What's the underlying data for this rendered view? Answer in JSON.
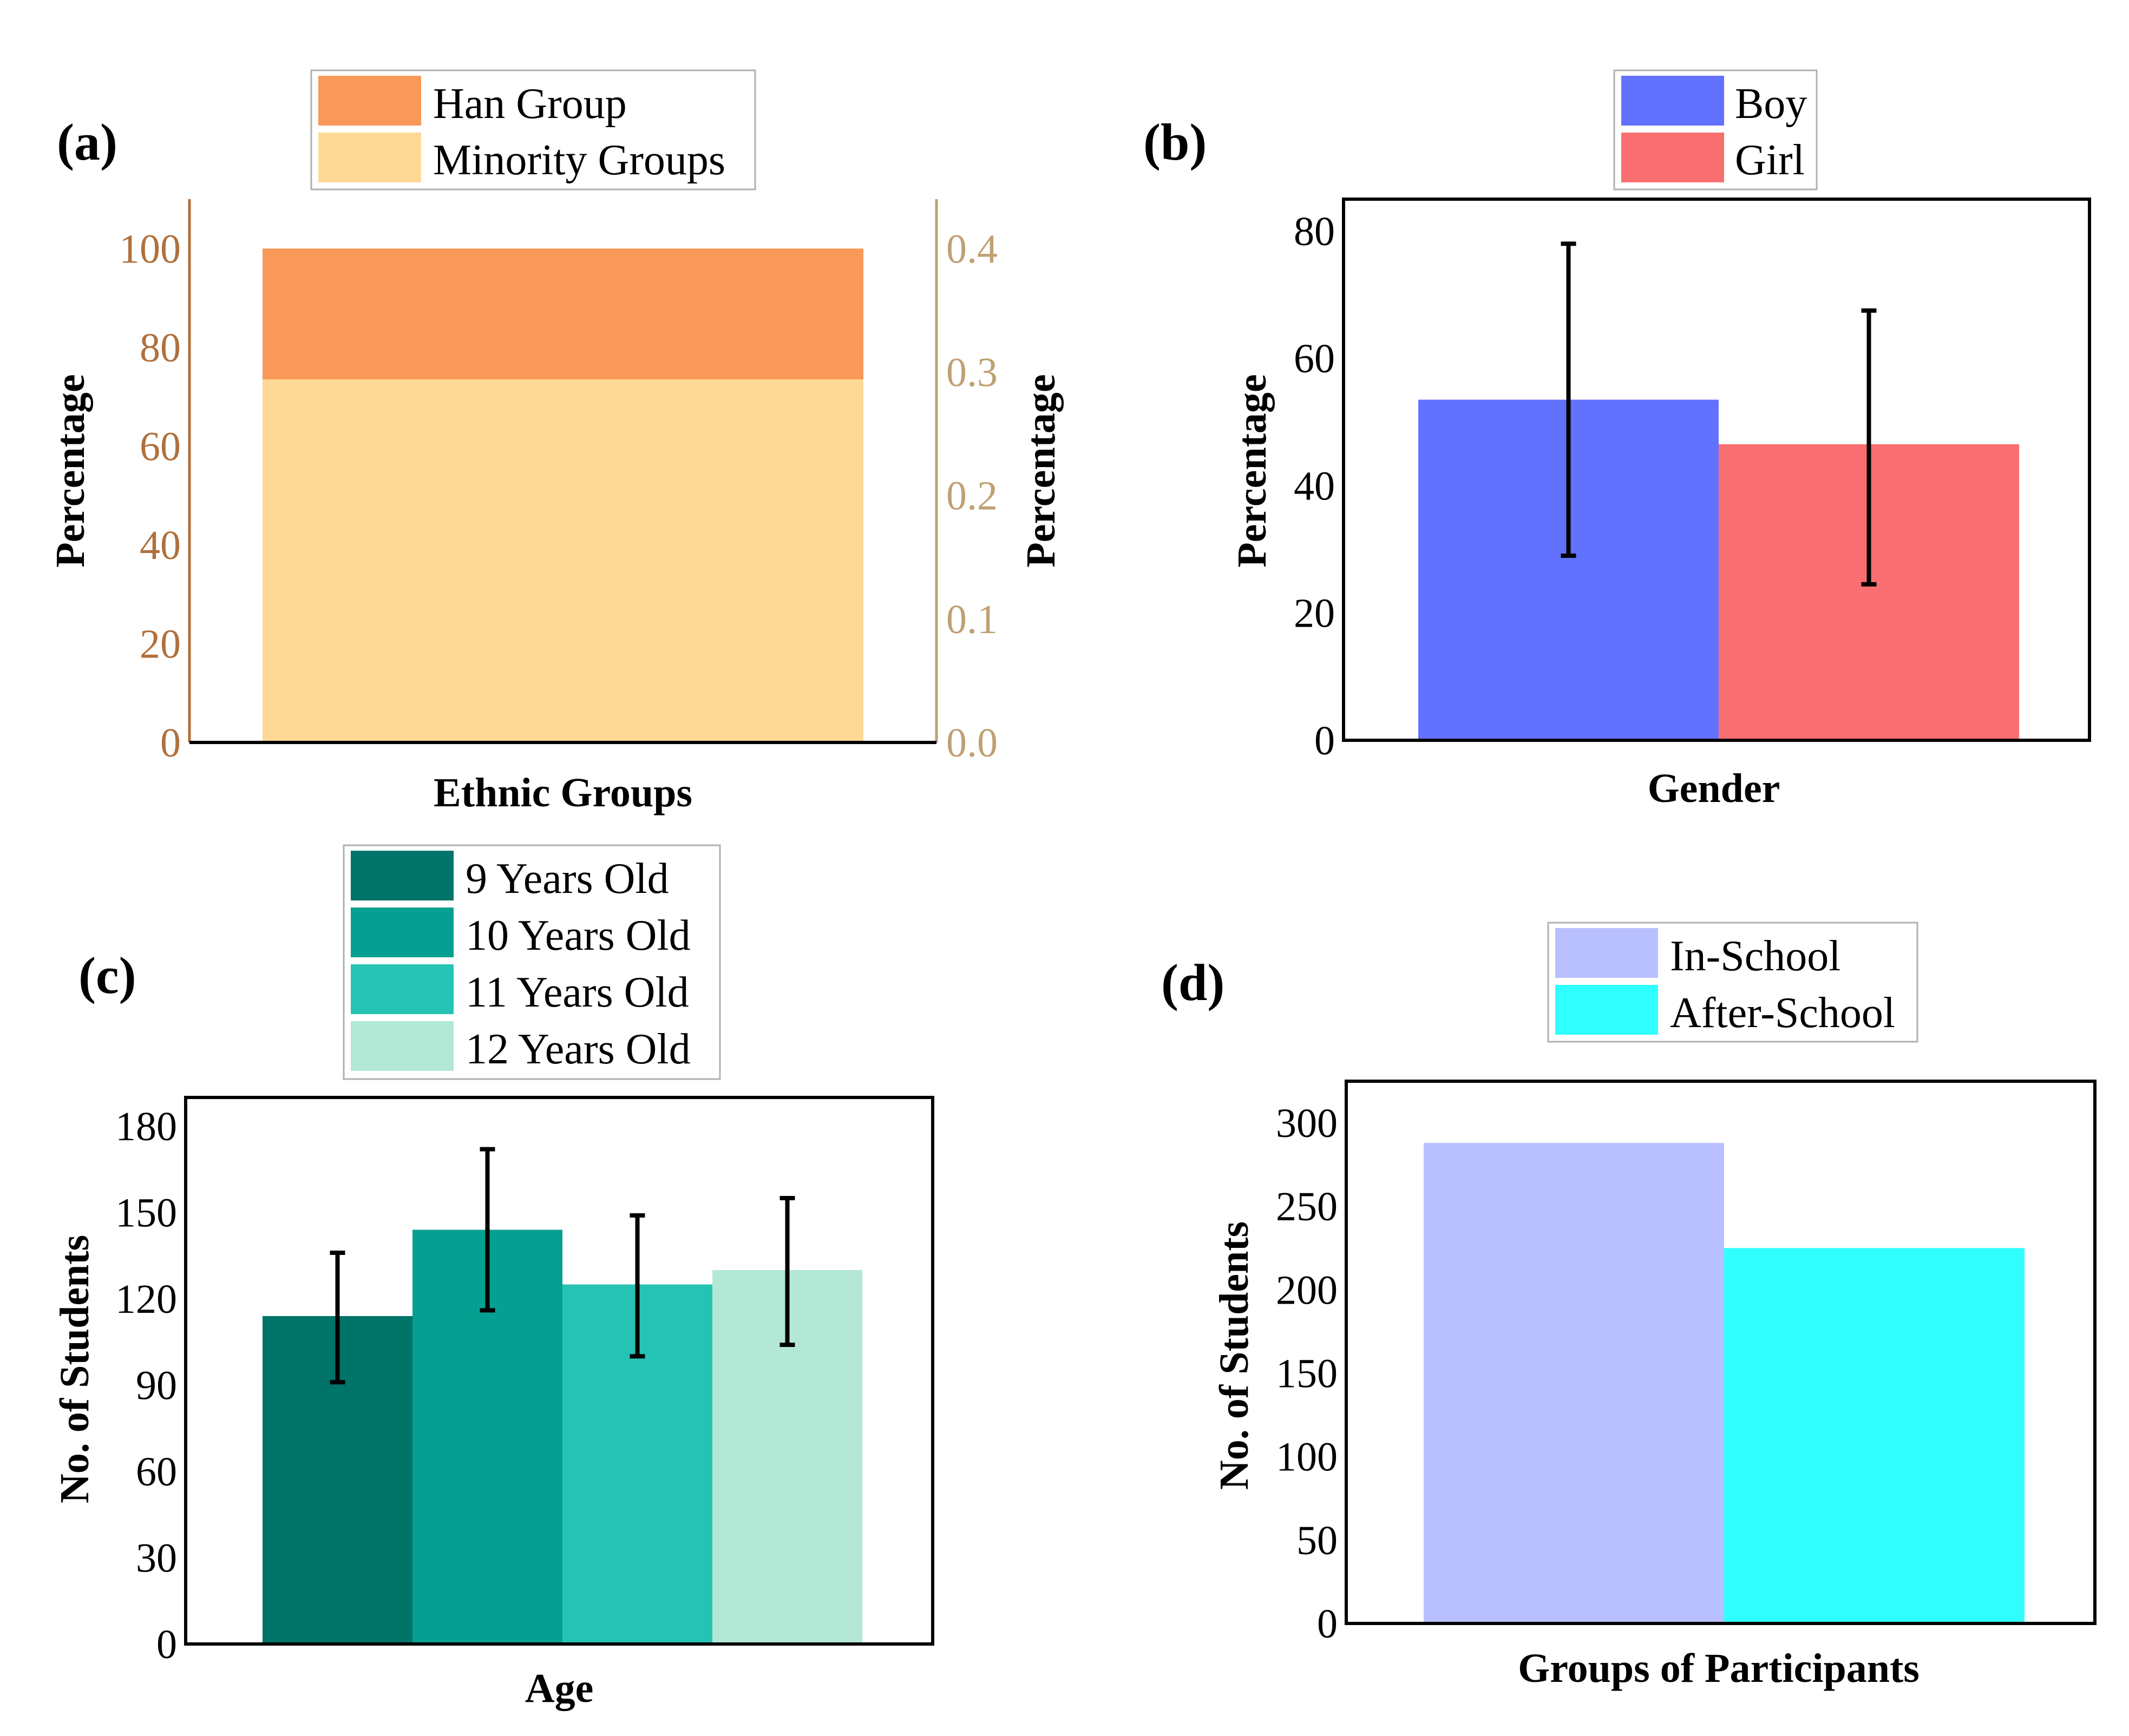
{
  "chart_data": [
    {
      "panel": "(a)",
      "type": "bar",
      "stacked": true,
      "categories": [
        ""
      ],
      "series": [
        {
          "name": "Minority Groups",
          "values": [
            73.5
          ],
          "color": "#FDD995"
        },
        {
          "name": "Han Group",
          "values": [
            26.5
          ],
          "color": "#F99858"
        }
      ],
      "xlabel": "Ethnic Groups",
      "ylabel": "Percentage",
      "ylabel_right": "Percentage",
      "ylim": [
        0,
        110
      ],
      "yticks": [
        "0",
        "20",
        "40",
        "60",
        "80",
        "100"
      ],
      "ylim_right": [
        0,
        0.44
      ],
      "yticks_right": [
        "0.0",
        "0.1",
        "0.2",
        "0.3",
        "0.4"
      ],
      "legend": [
        "Han Group",
        "Minority Groups"
      ],
      "legend_position": "top",
      "left_axis_color": "#B0703C",
      "right_axis_color": "#BFA172"
    },
    {
      "panel": "(b)",
      "type": "bar",
      "categories": [
        "Boy",
        "Girl"
      ],
      "values": [
        53.5,
        46.5
      ],
      "errors": [
        [
          29,
          78
        ],
        [
          24.5,
          67.5
        ]
      ],
      "colors": [
        "#6272FF",
        "#F96E70"
      ],
      "xlabel": "Gender",
      "ylabel": "Percentage",
      "ylim": [
        0,
        85
      ],
      "yticks": [
        "0",
        "20",
        "40",
        "60",
        "80"
      ],
      "legend": [
        "Boy",
        "Girl"
      ],
      "legend_position": "top-right"
    },
    {
      "panel": "(c)",
      "type": "bar",
      "categories": [
        "9 Years Old",
        "10 Years Old",
        "11 Years Old",
        "12 Years Old"
      ],
      "values": [
        114,
        144,
        125,
        130
      ],
      "errors": [
        [
          91,
          136
        ],
        [
          116,
          172
        ],
        [
          100,
          149
        ],
        [
          104,
          155
        ]
      ],
      "colors": [
        "#017469",
        "#05A091",
        "#25C3B4",
        "#B3E8D7"
      ],
      "xlabel": "Age",
      "ylabel": "No. of Students",
      "ylim": [
        0,
        190
      ],
      "yticks": [
        "0",
        "30",
        "60",
        "90",
        "120",
        "150",
        "180"
      ],
      "legend": [
        "9 Years Old",
        "10 Years Old",
        "11 Years Old",
        "12 Years Old"
      ],
      "legend_position": "top"
    },
    {
      "panel": "(d)",
      "type": "bar",
      "categories": [
        "In-School",
        "After-School"
      ],
      "values": [
        288,
        225
      ],
      "colors": [
        "#B9C0FF",
        "#2FFFFF"
      ],
      "xlabel": "Groups of Participants",
      "ylabel": "No. of Students",
      "ylim": [
        0,
        325
      ],
      "yticks": [
        "0",
        "50",
        "100",
        "150",
        "200",
        "250",
        "300"
      ],
      "legend": [
        "In-School",
        "After-School"
      ],
      "legend_position": "top-right"
    }
  ]
}
